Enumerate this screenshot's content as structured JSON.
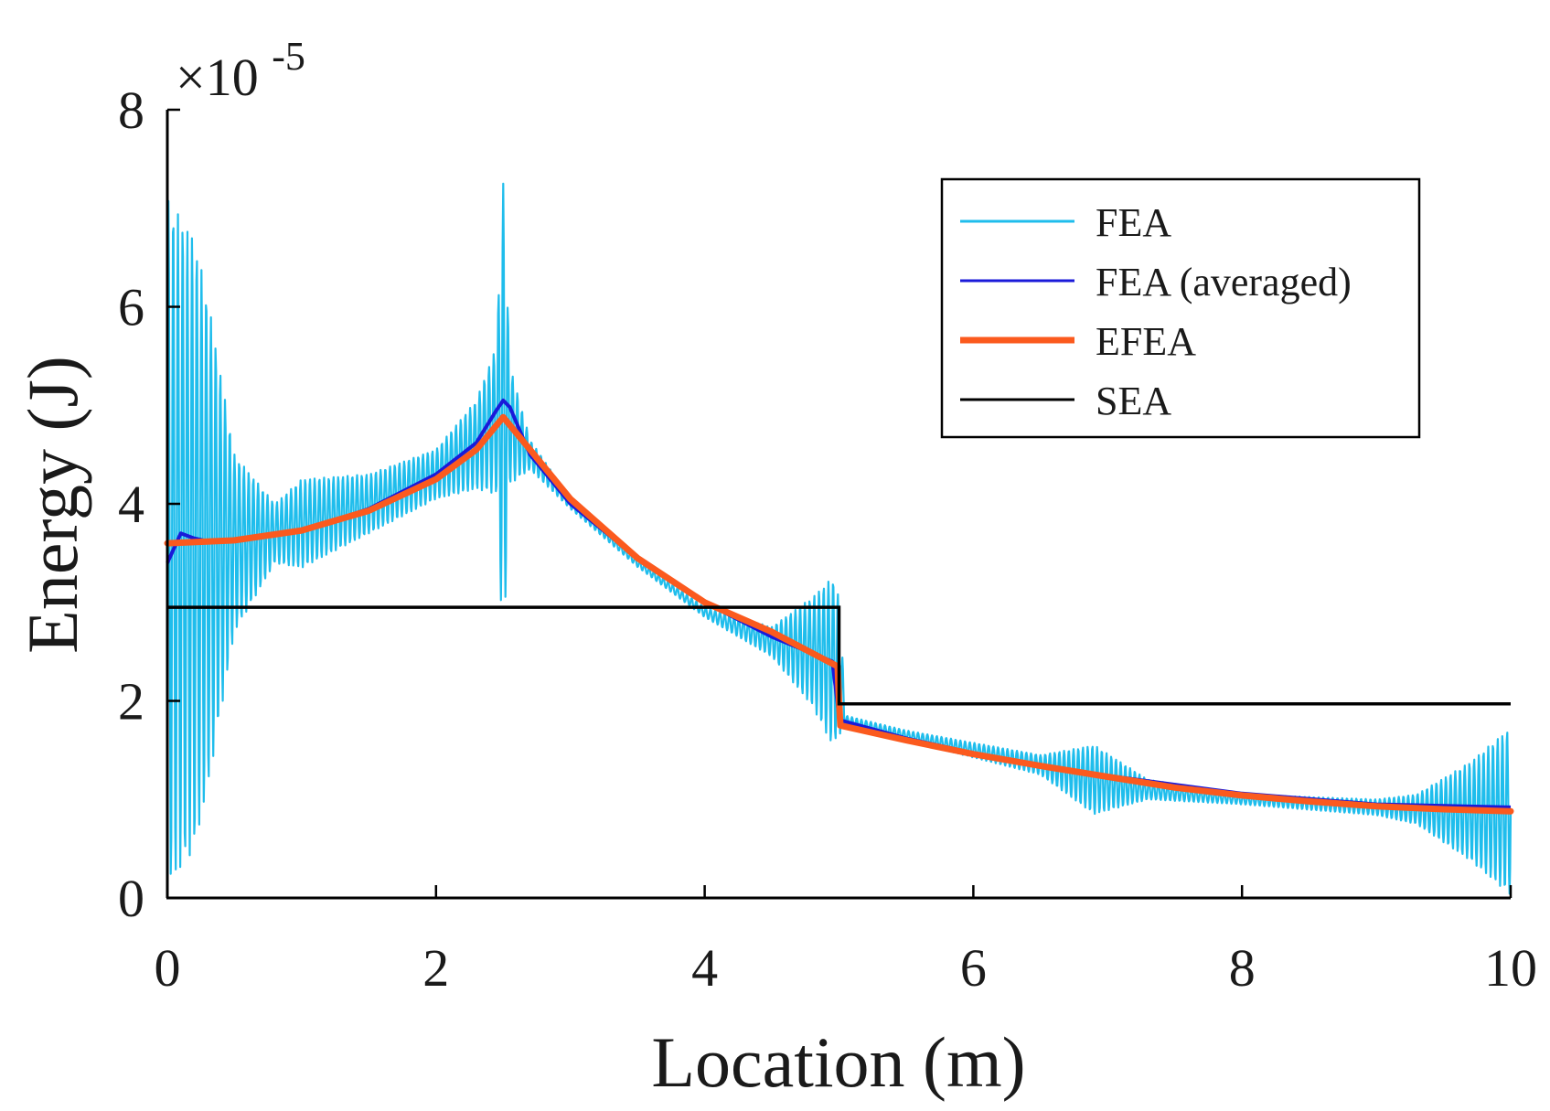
{
  "chart_data": {
    "type": "line",
    "title": "",
    "xlabel": "Location (m)",
    "ylabel": "Energy (J)",
    "y_exponent_label": "×10",
    "y_exponent_power": "-5",
    "xlim": [
      0,
      10
    ],
    "ylim": [
      0,
      8
    ],
    "xticks": [
      "0",
      "2",
      "4",
      "6",
      "8",
      "10"
    ],
    "yticks": [
      "0",
      "2",
      "4",
      "6",
      "8"
    ],
    "legend": {
      "placement": "top-right"
    },
    "colors": {
      "fea": "#1fbdec",
      "fea_avg": "#1a1ad9",
      "efea": "#fb5a1e",
      "sea": "#000000",
      "axis": "#000000"
    },
    "series": [
      {
        "name": "FEA",
        "style": "oscillating",
        "description_x": [
          0,
          0.1,
          0.2,
          0.3,
          0.5,
          0.8,
          1.0,
          1.5,
          2.0,
          2.3,
          2.45,
          2.5,
          2.55,
          2.7,
          3.0,
          3.5,
          4.0,
          4.5,
          4.8,
          4.95,
          5.0,
          5.05,
          5.5,
          6.5,
          6.9,
          7.3,
          8.0,
          9.0,
          9.3,
          9.7,
          10.0
        ],
        "description_y_mid": [
          3.6,
          3.6,
          3.6,
          3.6,
          3.6,
          3.7,
          3.8,
          4.0,
          4.3,
          4.6,
          4.85,
          4.9,
          4.8,
          4.5,
          4.0,
          3.4,
          2.9,
          2.6,
          2.5,
          2.4,
          2.35,
          1.8,
          1.65,
          1.35,
          1.2,
          1.1,
          1.0,
          0.92,
          0.9,
          0.88,
          0.88
        ],
        "description_amplitude": [
          3.5,
          3.3,
          3.1,
          2.5,
          0.9,
          0.3,
          0.45,
          0.3,
          0.25,
          0.45,
          0.75,
          2.45,
          0.6,
          0.15,
          0.05,
          0.04,
          0.05,
          0.15,
          0.55,
          0.85,
          0.7,
          0.05,
          0.05,
          0.1,
          0.35,
          0.1,
          0.05,
          0.08,
          0.15,
          0.5,
          0.85
        ]
      },
      {
        "name": "FEA (averaged)",
        "x": [
          0,
          0.1,
          0.2,
          0.3,
          0.5,
          1.0,
          1.5,
          2.0,
          2.3,
          2.45,
          2.5,
          2.55,
          2.7,
          3.0,
          3.5,
          4.0,
          4.5,
          4.95,
          5.0,
          5.02,
          5.5,
          6.0,
          6.5,
          7.0,
          8.0,
          9.0,
          10.0
        ],
        "y": [
          3.4,
          3.7,
          3.65,
          3.62,
          3.62,
          3.72,
          3.95,
          4.3,
          4.62,
          4.95,
          5.05,
          4.98,
          4.5,
          4.0,
          3.45,
          3.0,
          2.65,
          2.4,
          1.85,
          1.8,
          1.62,
          1.47,
          1.35,
          1.24,
          1.06,
          0.95,
          0.92
        ]
      },
      {
        "name": "EFEA",
        "x": [
          0,
          0.5,
          1.0,
          1.5,
          2.0,
          2.3,
          2.5,
          2.7,
          3.0,
          3.5,
          4.0,
          4.5,
          4.99,
          5.0,
          5.01,
          5.5,
          6.0,
          6.5,
          7.0,
          7.5,
          8.0,
          8.5,
          9.0,
          9.5,
          10.0
        ],
        "y": [
          3.6,
          3.63,
          3.73,
          3.93,
          4.25,
          4.55,
          4.88,
          4.55,
          4.05,
          3.45,
          3.0,
          2.7,
          2.35,
          2.0,
          1.75,
          1.6,
          1.46,
          1.34,
          1.23,
          1.12,
          1.04,
          0.98,
          0.93,
          0.9,
          0.88
        ]
      },
      {
        "name": "SEA",
        "x": [
          0,
          5.0,
          5.0,
          10.0
        ],
        "y": [
          2.95,
          2.95,
          1.97,
          1.97
        ]
      }
    ]
  }
}
